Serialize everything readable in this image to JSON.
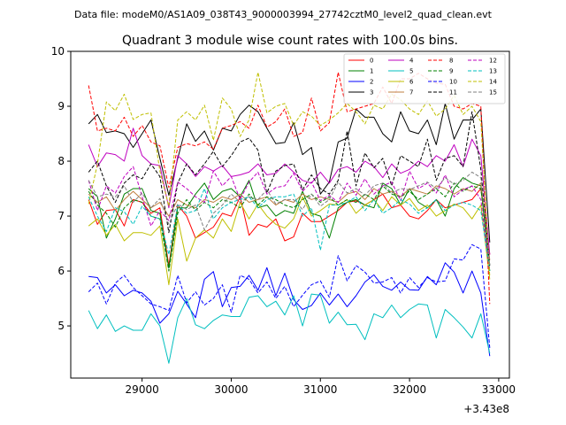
{
  "chart_data": {
    "type": "line",
    "suptitle": "Data file: modeM0/AS1A09_038T43_9000003994_27742cztM0_level2_quad_clean.evt",
    "title": "Quadrant 3 module wise count rates with 100.0s bins.",
    "xlabel": "",
    "ylabel": "",
    "x_offset_label": "+3.43e8",
    "xlim": [
      28200,
      33120
    ],
    "ylim": [
      4.05,
      10.0
    ],
    "xticks": [
      29000,
      30000,
      31000,
      32000,
      33000
    ],
    "xtick_labels": [
      "29000",
      "30000",
      "31000",
      "32000",
      "33000"
    ],
    "yticks": [
      5,
      6,
      7,
      8,
      9,
      10
    ],
    "ytick_labels": [
      "5",
      "6",
      "7",
      "8",
      "9",
      "10"
    ],
    "x": [
      28400,
      28500,
      28600,
      28700,
      28800,
      28900,
      29000,
      29100,
      29200,
      29300,
      29400,
      29500,
      29600,
      29700,
      29800,
      29900,
      30000,
      30100,
      30200,
      30300,
      30400,
      30500,
      30600,
      30700,
      30800,
      30900,
      31000,
      31100,
      31200,
      31300,
      31400,
      31500,
      31600,
      31700,
      31800,
      31900,
      32000,
      32100,
      32200,
      32300,
      32400,
      32500,
      32600,
      32700,
      32800,
      32900
    ],
    "legend_position": "top-right",
    "series": [
      {
        "name": "0",
        "color": "#ff0000",
        "dash": "solid",
        "values": [
          7.3,
          6.85,
          7.1,
          7.12,
          6.82,
          7.3,
          7.25,
          7.05,
          7.15,
          6.1,
          7.2,
          7.0,
          6.6,
          6.7,
          6.8,
          7.05,
          7.0,
          7.35,
          6.65,
          6.85,
          6.8,
          6.95,
          6.55,
          6.62,
          7.05,
          6.9,
          6.9,
          7.0,
          7.1,
          7.25,
          7.28,
          7.2,
          7.3,
          7.4,
          7.15,
          7.2,
          7.0,
          6.95,
          7.1,
          7.3,
          7.15,
          7.2,
          7.25,
          7.3,
          7.5,
          6.3
        ]
      },
      {
        "name": "1",
        "color": "#008000",
        "dash": "solid",
        "values": [
          7.5,
          7.35,
          6.6,
          6.95,
          7.4,
          7.5,
          7.5,
          7.1,
          7.05,
          6.05,
          7.15,
          7.15,
          7.4,
          7.6,
          7.3,
          7.45,
          7.5,
          7.35,
          7.65,
          7.15,
          7.2,
          7.0,
          7.1,
          7.05,
          7.45,
          7.05,
          7.0,
          6.6,
          7.15,
          7.25,
          7.3,
          7.2,
          7.15,
          7.6,
          7.5,
          7.2,
          7.5,
          7.25,
          7.15,
          7.3,
          7.0,
          7.5,
          7.7,
          7.6,
          7.55,
          6.0
        ]
      },
      {
        "name": "2",
        "color": "#0000ff",
        "dash": "solid",
        "values": [
          5.9,
          5.88,
          5.6,
          5.75,
          5.55,
          5.65,
          5.6,
          5.45,
          5.05,
          5.22,
          5.63,
          5.4,
          5.15,
          5.85,
          5.99,
          5.35,
          5.7,
          5.72,
          5.92,
          5.65,
          6.06,
          5.55,
          5.96,
          5.48,
          5.3,
          5.37,
          5.6,
          5.38,
          5.58,
          5.35,
          5.55,
          5.8,
          5.93,
          5.72,
          5.65,
          5.8,
          5.66,
          5.65,
          5.9,
          5.75,
          6.15,
          5.98,
          5.6,
          6.0,
          5.6,
          4.45
        ]
      },
      {
        "name": "3",
        "color": "#000000",
        "dash": "solid",
        "values": [
          8.68,
          8.85,
          8.52,
          8.55,
          8.5,
          8.25,
          8.5,
          8.75,
          8.05,
          7.38,
          8.05,
          8.68,
          8.36,
          8.55,
          8.2,
          8.6,
          8.55,
          8.85,
          9.02,
          8.9,
          8.6,
          8.32,
          8.34,
          8.7,
          8.12,
          8.25,
          7.4,
          7.62,
          8.35,
          8.42,
          8.95,
          8.8,
          8.8,
          8.5,
          8.35,
          8.9,
          8.55,
          8.5,
          8.75,
          8.3,
          9.05,
          8.4,
          8.75,
          8.75,
          8.95,
          6.52
        ]
      },
      {
        "name": "4",
        "color": "#bf00bf",
        "dash": "solid",
        "values": [
          8.3,
          7.9,
          8.15,
          8.12,
          8.0,
          8.6,
          8.1,
          7.95,
          7.92,
          7.15,
          8.1,
          7.95,
          7.72,
          7.9,
          7.82,
          7.92,
          7.72,
          7.75,
          7.8,
          7.95,
          7.75,
          7.78,
          7.95,
          7.8,
          7.65,
          7.6,
          7.8,
          7.6,
          7.85,
          7.9,
          7.8,
          8.0,
          7.9,
          7.7,
          7.95,
          7.78,
          7.85,
          8.0,
          7.9,
          8.1,
          8.0,
          8.3,
          7.9,
          8.4,
          8.1,
          6.3
        ]
      },
      {
        "name": "5",
        "color": "#00bfbf",
        "dash": "solid",
        "values": [
          5.28,
          4.95,
          5.2,
          4.9,
          5.0,
          4.92,
          4.92,
          5.22,
          5.0,
          4.32,
          5.15,
          5.5,
          5.02,
          4.95,
          5.1,
          5.2,
          5.17,
          5.17,
          5.52,
          5.55,
          5.35,
          5.45,
          5.2,
          5.55,
          5.0,
          5.58,
          5.56,
          5.05,
          5.25,
          5.02,
          5.03,
          4.75,
          5.22,
          5.15,
          5.38,
          5.15,
          5.3,
          5.4,
          5.38,
          4.78,
          5.3,
          5.15,
          4.98,
          4.78,
          5.22,
          4.5
        ]
      },
      {
        "name": "6",
        "color": "#bfbf00",
        "dash": "solid",
        "values": [
          6.82,
          6.95,
          6.65,
          6.85,
          6.55,
          6.7,
          6.7,
          6.65,
          6.82,
          5.75,
          6.95,
          6.18,
          6.6,
          6.75,
          6.6,
          6.95,
          6.72,
          7.25,
          6.95,
          7.22,
          7.0,
          6.85,
          6.78,
          6.95,
          7.35,
          7.0,
          7.1,
          7.22,
          7.2,
          7.3,
          7.05,
          7.2,
          7.3,
          7.1,
          7.35,
          7.2,
          7.32,
          7.1,
          7.2,
          7.0,
          7.1,
          7.22,
          7.15,
          6.95,
          7.2,
          5.85
        ]
      },
      {
        "name": "7",
        "color": "#bf7f3f",
        "dash": "solid",
        "values": [
          7.4,
          7.25,
          7.35,
          7.1,
          7.3,
          7.45,
          7.3,
          7.15,
          7.25,
          7.0,
          7.3,
          7.2,
          7.15,
          7.3,
          7.25,
          7.35,
          7.3,
          7.4,
          7.25,
          7.3,
          7.35,
          7.2,
          7.3,
          7.25,
          7.4,
          7.3,
          7.35,
          7.3,
          7.25,
          7.4,
          7.45,
          7.3,
          7.5,
          7.4,
          7.45,
          7.35,
          7.5,
          7.45,
          7.4,
          7.55,
          7.5,
          7.4,
          7.5,
          7.45,
          7.6,
          6.2
        ]
      },
      {
        "name": "8",
        "color": "#ff0000",
        "dash": "dashed",
        "values": [
          9.38,
          8.55,
          8.6,
          8.55,
          8.8,
          8.45,
          8.65,
          8.35,
          8.28,
          7.52,
          8.25,
          8.32,
          8.28,
          8.35,
          8.22,
          8.6,
          8.65,
          8.72,
          8.6,
          9.02,
          8.62,
          8.72,
          8.95,
          8.45,
          8.52,
          9.15,
          8.55,
          8.7,
          9.62,
          8.9,
          8.95,
          9.0,
          9.05,
          9.35,
          9.05,
          9.5,
          9.5,
          9.6,
          9.5,
          9.42,
          9.4,
          9.0,
          8.95,
          9.05,
          9.0,
          5.4
        ]
      },
      {
        "name": "9",
        "color": "#008000",
        "dash": "dashed",
        "values": [
          7.45,
          7.2,
          7.05,
          6.8,
          7.15,
          7.3,
          7.25,
          7.0,
          6.95,
          6.0,
          7.05,
          7.3,
          7.1,
          7.25,
          7.15,
          7.3,
          7.25,
          7.15,
          7.4,
          7.2,
          7.35,
          7.3,
          7.2,
          7.15,
          7.3,
          7.4,
          7.25,
          7.35,
          7.2,
          7.3,
          7.25,
          7.4,
          7.3,
          7.55,
          7.4,
          7.35,
          7.45,
          7.3,
          7.4,
          7.5,
          7.35,
          7.6,
          7.45,
          7.55,
          7.5,
          6.1
        ]
      },
      {
        "name": "10",
        "color": "#0000ff",
        "dash": "dashed",
        "values": [
          5.62,
          5.78,
          5.4,
          5.78,
          5.92,
          5.7,
          5.55,
          5.4,
          5.35,
          5.28,
          5.92,
          5.42,
          5.62,
          5.38,
          5.5,
          5.75,
          5.25,
          5.92,
          5.85,
          5.6,
          5.8,
          5.5,
          5.72,
          5.35,
          5.56,
          5.75,
          5.82,
          5.52,
          6.28,
          5.82,
          6.1,
          5.98,
          5.78,
          5.8,
          5.88,
          5.6,
          5.88,
          5.7,
          5.88,
          5.8,
          5.82,
          6.22,
          6.2,
          6.48,
          6.4,
          4.6
        ]
      },
      {
        "name": "11",
        "color": "#000000",
        "dash": "dashed",
        "values": [
          7.8,
          8.0,
          7.55,
          7.25,
          7.6,
          7.75,
          7.68,
          7.95,
          7.72,
          6.7,
          7.6,
          7.95,
          7.75,
          7.95,
          8.18,
          7.9,
          8.1,
          8.35,
          8.42,
          8.2,
          7.42,
          7.82,
          7.92,
          7.95,
          7.48,
          7.75,
          7.5,
          7.4,
          7.65,
          8.55,
          7.55,
          8.15,
          7.88,
          8.05,
          7.55,
          8.1,
          8.0,
          7.9,
          8.4,
          7.65,
          8.05,
          8.1,
          7.9,
          8.9,
          7.85,
          6.1
        ]
      },
      {
        "name": "12",
        "color": "#bf00bf",
        "dash": "dashed",
        "values": [
          7.65,
          7.1,
          7.55,
          7.42,
          7.72,
          7.9,
          7.35,
          6.82,
          7.1,
          6.92,
          7.62,
          7.5,
          7.35,
          7.25,
          7.82,
          7.55,
          7.72,
          7.3,
          7.62,
          7.8,
          7.4,
          7.52,
          7.55,
          7.78,
          7.45,
          7.62,
          7.28,
          7.38,
          7.25,
          7.6,
          7.38,
          7.68,
          7.4,
          7.55,
          7.62,
          7.28,
          7.82,
          7.5,
          7.6,
          7.42,
          7.75,
          7.35,
          7.48,
          7.55,
          7.3,
          6.0
        ]
      },
      {
        "name": "13",
        "color": "#00bfbf",
        "dash": "dashed",
        "values": [
          7.35,
          7.0,
          6.72,
          7.15,
          7.08,
          6.85,
          7.18,
          7.0,
          6.95,
          6.3,
          7.2,
          7.05,
          7.1,
          7.5,
          6.95,
          7.15,
          7.25,
          7.3,
          7.35,
          7.15,
          7.3,
          7.35,
          7.35,
          7.4,
          7.0,
          7.15,
          6.38,
          7.2,
          7.2,
          7.25,
          7.35,
          7.1,
          7.3,
          7.05,
          7.15,
          7.3,
          7.22,
          7.05,
          7.15,
          7.3,
          7.1,
          7.2,
          7.25,
          7.2,
          7.1,
          6.0
        ]
      },
      {
        "name": "14",
        "color": "#bfbf00",
        "dash": "dashed",
        "values": [
          7.22,
          7.95,
          9.08,
          8.92,
          9.22,
          8.76,
          8.85,
          8.88,
          7.82,
          7.18,
          8.75,
          8.9,
          8.75,
          9.02,
          8.38,
          9.15,
          8.95,
          8.45,
          8.75,
          9.62,
          8.88,
          9.0,
          9.05,
          8.65,
          8.9,
          8.82,
          8.65,
          8.75,
          8.88,
          9.05,
          8.9,
          8.68,
          9.02,
          8.95,
          9.22,
          9.12,
          8.95,
          8.85,
          9.1,
          8.82,
          8.95,
          9.2,
          8.85,
          9.0,
          8.72,
          5.9
        ]
      },
      {
        "name": "15",
        "color": "#7f7f7f",
        "dash": "dashed",
        "values": [
          7.65,
          7.35,
          7.4,
          7.35,
          7.55,
          7.25,
          7.42,
          7.15,
          7.32,
          6.85,
          7.22,
          7.12,
          7.2,
          6.75,
          7.05,
          7.2,
          7.4,
          7.25,
          7.35,
          7.3,
          7.48,
          7.22,
          7.3,
          7.3,
          7.12,
          7.4,
          7.18,
          7.3,
          7.62,
          7.42,
          7.5,
          7.38,
          7.55,
          7.6,
          7.42,
          7.5,
          7.48,
          7.55,
          7.62,
          7.5,
          7.7,
          7.58,
          7.65,
          7.8,
          7.7,
          6.1
        ]
      }
    ]
  }
}
